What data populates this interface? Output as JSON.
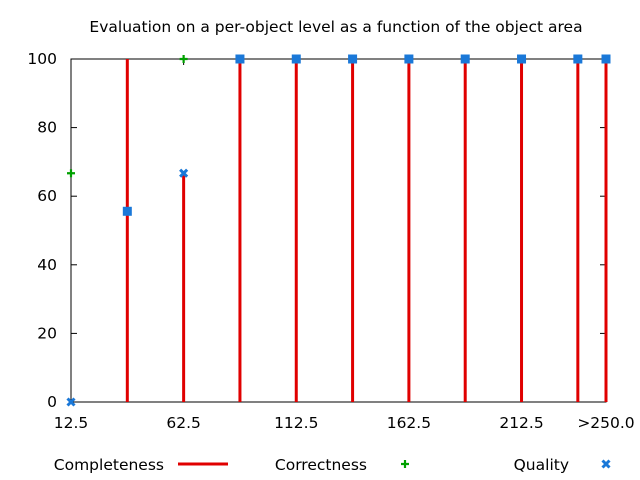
{
  "chart_data": {
    "type": "bar",
    "title": "Evaluation on a per-object level as a function of the object area",
    "xlabel": "",
    "ylabel": "",
    "ylim": [
      0,
      100
    ],
    "yticks": [
      0,
      20,
      40,
      60,
      80,
      100
    ],
    "x": [
      12.5,
      37.5,
      62.5,
      87.5,
      112.5,
      137.5,
      162.5,
      187.5,
      212.5,
      237.5,
      250
    ],
    "xlim": [
      12.5,
      250
    ],
    "xtick_labels": [
      {
        "x": 12.5,
        "label": "12.5"
      },
      {
        "x": 62.5,
        "label": "62.5"
      },
      {
        "x": 112.5,
        "label": "112.5"
      },
      {
        "x": 162.5,
        "label": "162.5"
      },
      {
        "x": 212.5,
        "label": "212.5"
      },
      {
        "x": 250,
        "label": ">250.0"
      }
    ],
    "grid": false,
    "legend_position": "bottom",
    "series": [
      {
        "name": "Completeness",
        "style": "impulses",
        "color": "#e00000",
        "values": [
          0,
          100,
          66.7,
          100,
          100,
          100,
          100,
          100,
          100,
          100,
          100
        ]
      },
      {
        "name": "Correctness",
        "style": "plus",
        "color": "#00a000",
        "values": [
          66.7,
          55.6,
          100,
          100,
          100,
          100,
          100,
          100,
          100,
          100,
          100
        ]
      },
      {
        "name": "Quality",
        "style": "cross",
        "color": "#1a78d8",
        "values": [
          0,
          55.6,
          66.7,
          100,
          100,
          100,
          100,
          100,
          100,
          100,
          100
        ]
      }
    ]
  }
}
